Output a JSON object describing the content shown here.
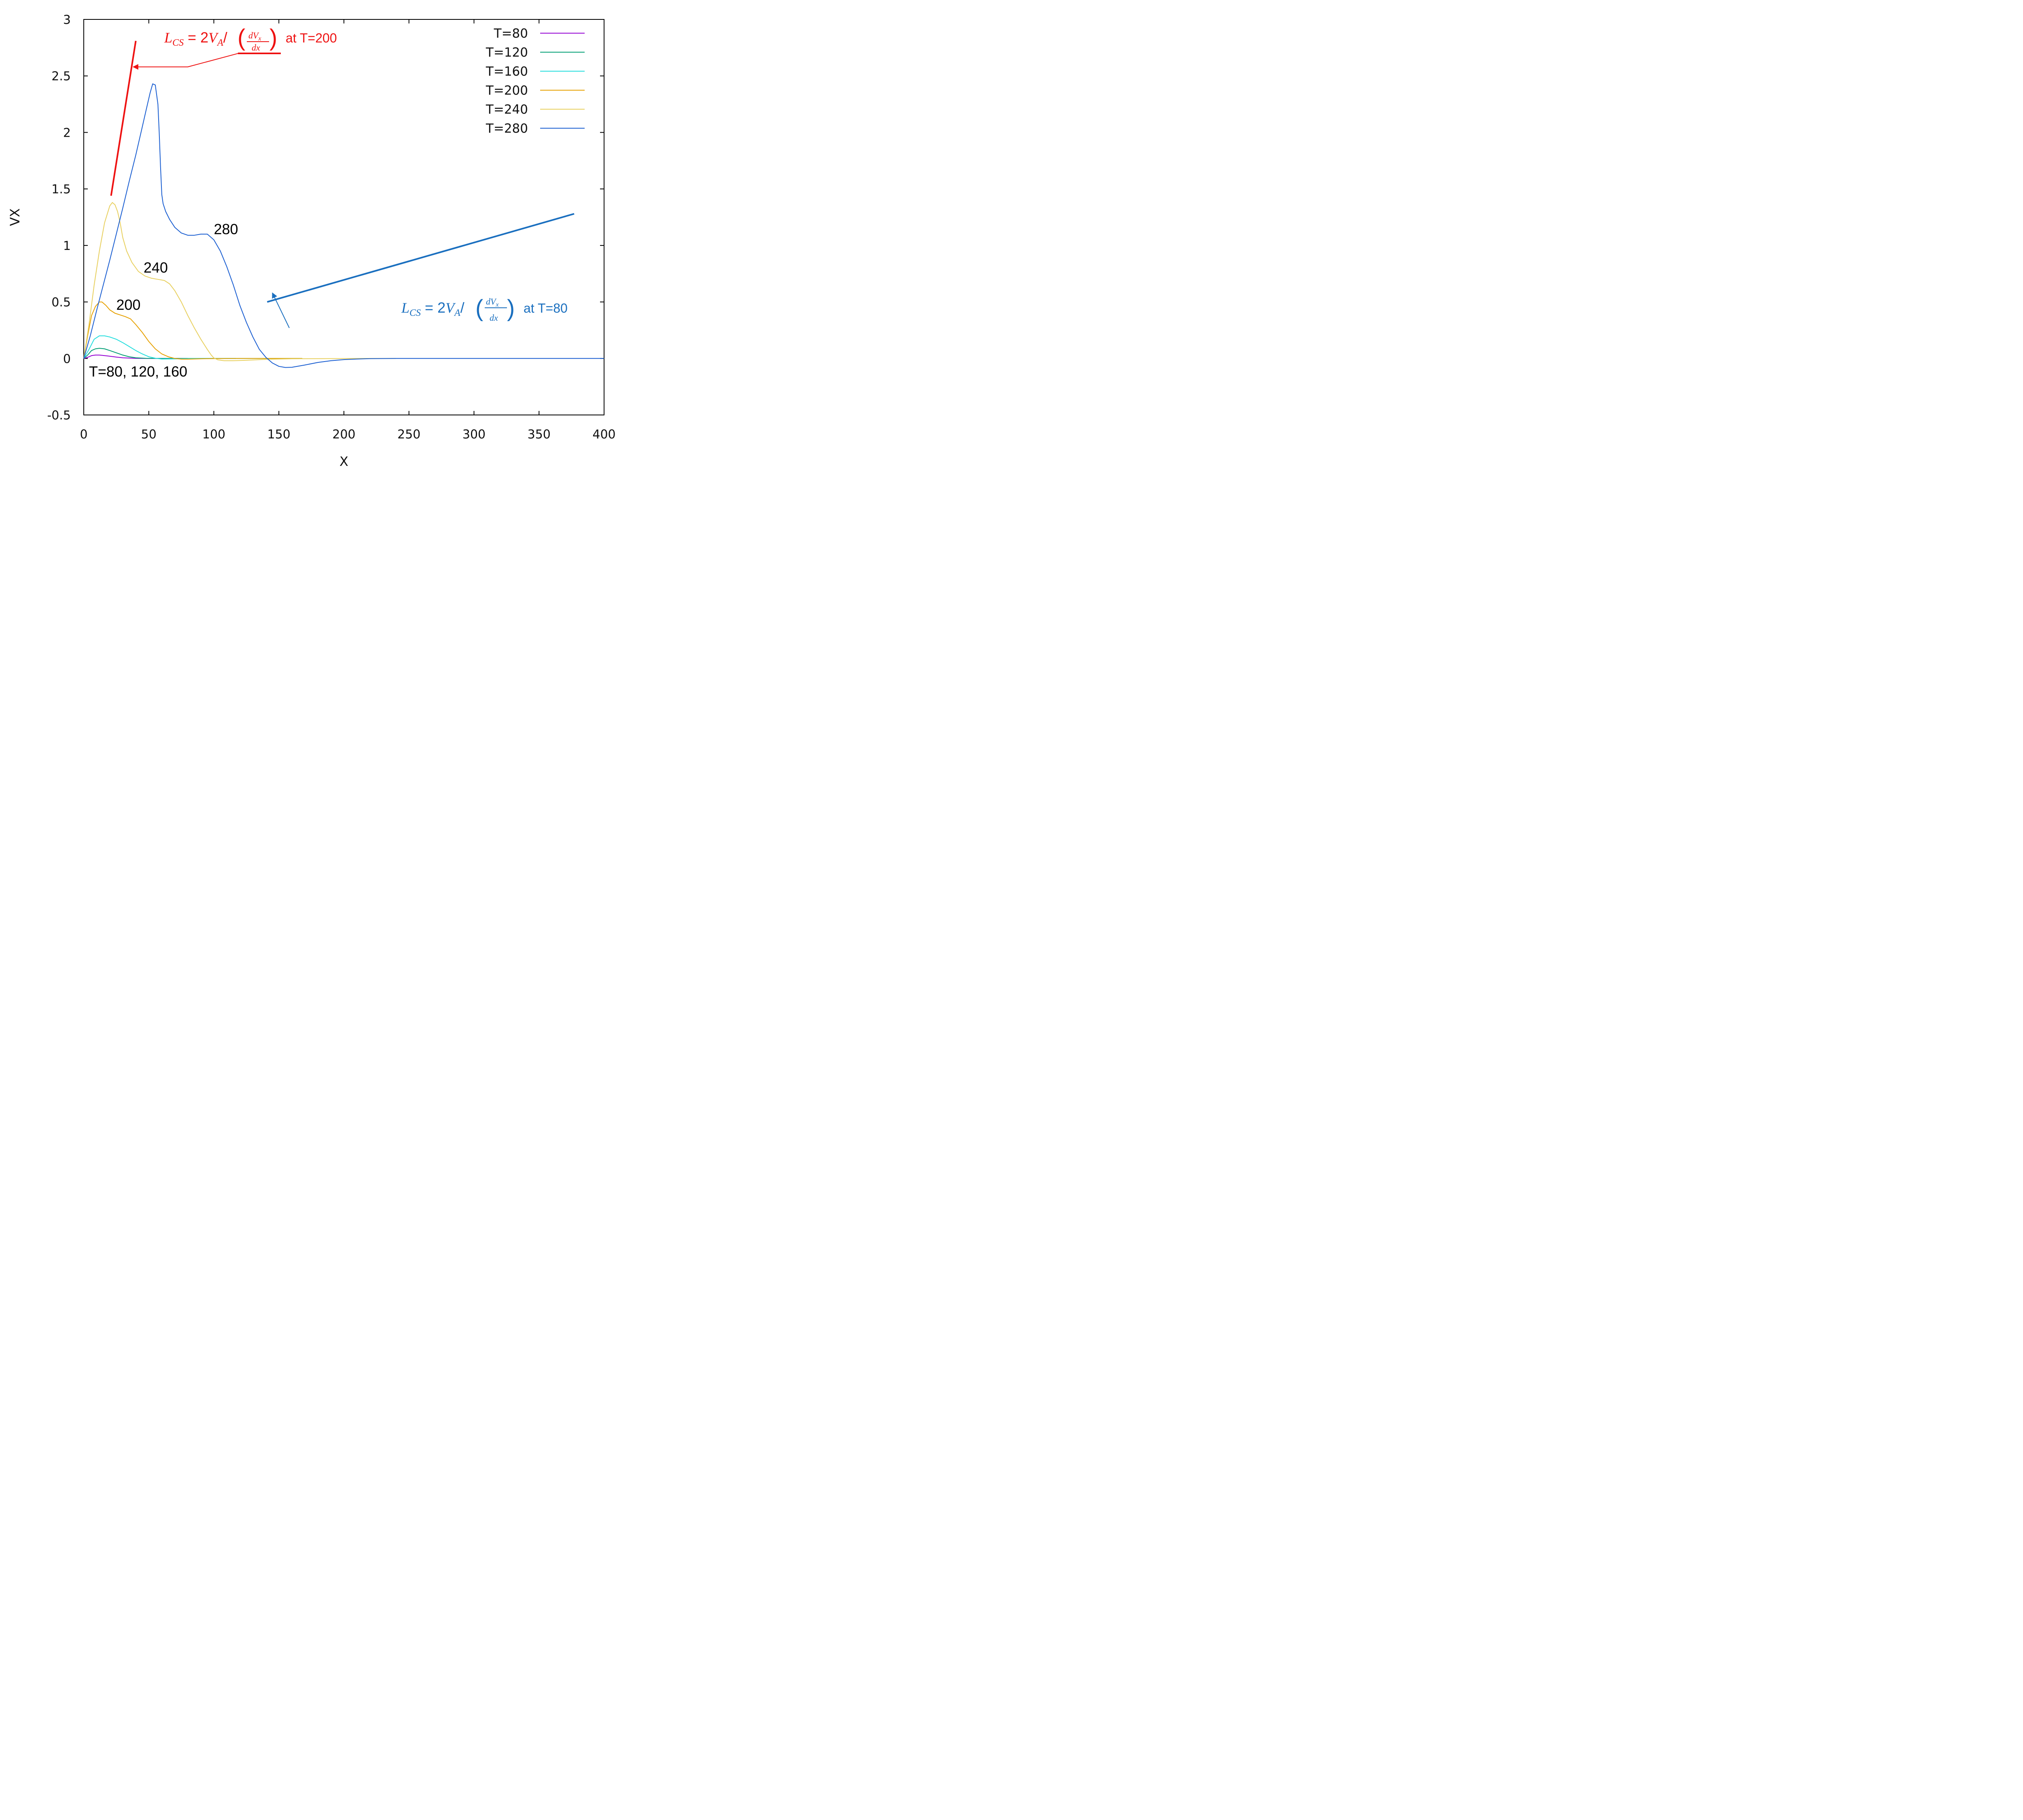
{
  "chart_data": {
    "type": "line",
    "xlabel": "X",
    "ylabel": "VX",
    "xlim": [
      0,
      400
    ],
    "ylim": [
      -0.5,
      3
    ],
    "xticks": [
      "0",
      "50",
      "100",
      "150",
      "200",
      "250",
      "300",
      "350",
      "400"
    ],
    "yticks": [
      "-0.5",
      "0",
      "0.5",
      "1",
      "1.5",
      "2",
      "2.5",
      "3"
    ],
    "grid": false,
    "legend_position": "top-right",
    "series": [
      {
        "name": "T=80",
        "color": "#9400d3",
        "points": [
          [
            0,
            0
          ],
          [
            3,
            0.01
          ],
          [
            6,
            0.025
          ],
          [
            9,
            0.03
          ],
          [
            12,
            0.03
          ],
          [
            16,
            0.025
          ],
          [
            20,
            0.02
          ],
          [
            25,
            0.012
          ],
          [
            30,
            0.006
          ],
          [
            35,
            0.003
          ],
          [
            40,
            0.001
          ],
          [
            48,
            0
          ],
          [
            60,
            0
          ],
          [
            80,
            0
          ]
        ]
      },
      {
        "name": "T=120",
        "color": "#009e73",
        "points": [
          [
            0,
            0
          ],
          [
            3,
            0.03
          ],
          [
            6,
            0.07
          ],
          [
            9,
            0.085
          ],
          [
            12,
            0.09
          ],
          [
            16,
            0.085
          ],
          [
            20,
            0.07
          ],
          [
            25,
            0.05
          ],
          [
            30,
            0.03
          ],
          [
            35,
            0.015
          ],
          [
            40,
            0.006
          ],
          [
            48,
            0.001
          ],
          [
            60,
            0
          ],
          [
            80,
            0
          ],
          [
            100,
            0
          ],
          [
            117,
            0
          ]
        ]
      },
      {
        "name": "T=160",
        "color": "#22dddd",
        "points": [
          [
            0,
            0
          ],
          [
            4,
            0.08
          ],
          [
            8,
            0.17
          ],
          [
            12,
            0.2
          ],
          [
            16,
            0.2
          ],
          [
            20,
            0.19
          ],
          [
            25,
            0.17
          ],
          [
            30,
            0.14
          ],
          [
            35,
            0.105
          ],
          [
            40,
            0.07
          ],
          [
            45,
            0.04
          ],
          [
            50,
            0.015
          ],
          [
            55,
            0.002
          ],
          [
            60,
            -0.005
          ],
          [
            70,
            -0.004
          ],
          [
            80,
            -0.001
          ],
          [
            100,
            0
          ],
          [
            120,
            0
          ],
          [
            135,
            0
          ],
          [
            168,
            0
          ]
        ]
      },
      {
        "name": "T=200",
        "color": "#e6a000",
        "points": [
          [
            0,
            0
          ],
          [
            3,
            0.2
          ],
          [
            6,
            0.38
          ],
          [
            9,
            0.46
          ],
          [
            12,
            0.5
          ],
          [
            14,
            0.5
          ],
          [
            17,
            0.47
          ],
          [
            20,
            0.43
          ],
          [
            24,
            0.4
          ],
          [
            28,
            0.385
          ],
          [
            32,
            0.37
          ],
          [
            36,
            0.35
          ],
          [
            40,
            0.3
          ],
          [
            45,
            0.23
          ],
          [
            50,
            0.15
          ],
          [
            55,
            0.085
          ],
          [
            60,
            0.04
          ],
          [
            65,
            0.015
          ],
          [
            70,
            0
          ],
          [
            75,
            -0.006
          ],
          [
            80,
            -0.006
          ],
          [
            90,
            -0.003
          ],
          [
            100,
            -0.001
          ],
          [
            120,
            0
          ],
          [
            140,
            0
          ],
          [
            168,
            0
          ]
        ]
      },
      {
        "name": "T=240",
        "color": "#e8d060",
        "points": [
          [
            0,
            0
          ],
          [
            4,
            0.3
          ],
          [
            8,
            0.65
          ],
          [
            12,
            0.95
          ],
          [
            16,
            1.2
          ],
          [
            20,
            1.35
          ],
          [
            22,
            1.38
          ],
          [
            24,
            1.36
          ],
          [
            26,
            1.3
          ],
          [
            28,
            1.2
          ],
          [
            30,
            1.07
          ],
          [
            33,
            0.95
          ],
          [
            37,
            0.85
          ],
          [
            42,
            0.77
          ],
          [
            47,
            0.73
          ],
          [
            52,
            0.71
          ],
          [
            57,
            0.7
          ],
          [
            62,
            0.69
          ],
          [
            66,
            0.66
          ],
          [
            70,
            0.6
          ],
          [
            75,
            0.5
          ],
          [
            80,
            0.38
          ],
          [
            85,
            0.27
          ],
          [
            90,
            0.17
          ],
          [
            95,
            0.08
          ],
          [
            98,
            0.03
          ],
          [
            100,
            0.005
          ],
          [
            103,
            -0.012
          ],
          [
            108,
            -0.02
          ],
          [
            115,
            -0.02
          ],
          [
            125,
            -0.016
          ],
          [
            140,
            -0.008
          ],
          [
            160,
            -0.003
          ],
          [
            190,
            -0.001
          ],
          [
            220,
            0
          ],
          [
            240,
            0
          ]
        ]
      },
      {
        "name": "T=280",
        "color": "#1a5ed1",
        "points": [
          [
            0,
            0
          ],
          [
            5,
            0.2
          ],
          [
            10,
            0.43
          ],
          [
            15,
            0.65
          ],
          [
            20,
            0.87
          ],
          [
            25,
            1.1
          ],
          [
            30,
            1.33
          ],
          [
            35,
            1.57
          ],
          [
            40,
            1.8
          ],
          [
            45,
            2.05
          ],
          [
            48,
            2.2
          ],
          [
            51,
            2.35
          ],
          [
            53,
            2.43
          ],
          [
            55,
            2.42
          ],
          [
            57,
            2.25
          ],
          [
            58,
            2.0
          ],
          [
            59,
            1.7
          ],
          [
            60,
            1.45
          ],
          [
            61,
            1.37
          ],
          [
            63,
            1.3
          ],
          [
            66,
            1.23
          ],
          [
            70,
            1.16
          ],
          [
            75,
            1.11
          ],
          [
            80,
            1.09
          ],
          [
            85,
            1.09
          ],
          [
            90,
            1.1
          ],
          [
            95,
            1.1
          ],
          [
            100,
            1.05
          ],
          [
            105,
            0.95
          ],
          [
            110,
            0.81
          ],
          [
            115,
            0.65
          ],
          [
            120,
            0.47
          ],
          [
            125,
            0.32
          ],
          [
            130,
            0.19
          ],
          [
            135,
            0.08
          ],
          [
            140,
            0.01
          ],
          [
            145,
            -0.04
          ],
          [
            150,
            -0.07
          ],
          [
            155,
            -0.08
          ],
          [
            160,
            -0.078
          ],
          [
            170,
            -0.058
          ],
          [
            180,
            -0.035
          ],
          [
            190,
            -0.02
          ],
          [
            200,
            -0.01
          ],
          [
            210,
            -0.005
          ],
          [
            220,
            -0.002
          ],
          [
            240,
            0
          ],
          [
            300,
            0
          ],
          [
            400,
            0
          ]
        ]
      }
    ],
    "annotations": [
      {
        "text": "280",
        "x": 100,
        "y": 1.1,
        "color": "#000000"
      },
      {
        "text": "240",
        "x": 46,
        "y": 0.76,
        "color": "#000000"
      },
      {
        "text": "200",
        "x": 25,
        "y": 0.43,
        "color": "#000000"
      },
      {
        "text": "T=80, 120, 160",
        "x": 4,
        "y": -0.16,
        "color": "#000000"
      }
    ],
    "guides": [
      {
        "name": "Lcs-T200-line",
        "color": "#ee1111",
        "points": [
          [
            21,
            1.44
          ],
          [
            40,
            2.81
          ]
        ]
      },
      {
        "name": "Lcs-T80-line",
        "color": "#1a6fbf",
        "points": [
          [
            141,
            0.5
          ],
          [
            377,
            1.28
          ]
        ]
      }
    ],
    "arrows": [
      {
        "name": "arrow-T200",
        "color": "#ee1111",
        "points": [
          [
            119,
            2.7
          ],
          [
            80,
            2.58
          ],
          [
            38,
            2.58
          ]
        ]
      },
      {
        "name": "arrow-T80",
        "color": "#1a6fbf",
        "points": [
          [
            158,
            0.27
          ],
          [
            145,
            0.58
          ]
        ]
      }
    ],
    "formulas": [
      {
        "id": "t200",
        "color": "#ee1111",
        "suffix": "at T=200"
      },
      {
        "id": "t80",
        "color": "#1a6fbf",
        "suffix": "at T=80"
      }
    ]
  }
}
